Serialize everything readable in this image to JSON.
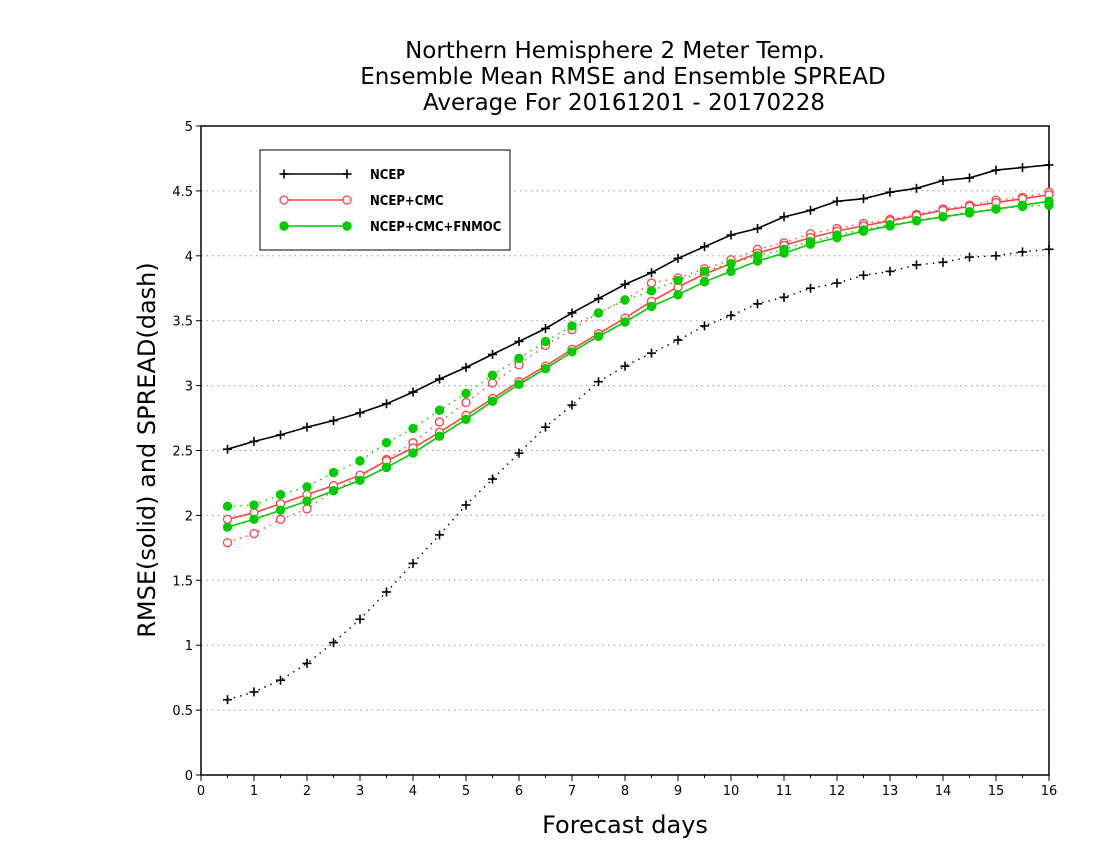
{
  "chart_data": {
    "type": "line",
    "title": [
      "Northern Hemisphere 2 Meter Temp.",
      "Ensemble Mean RMSE and Ensemble SPREAD",
      "Average For 20161201 - 20170228"
    ],
    "xlabel": "Forecast days",
    "ylabel": "RMSE(solid) and SPREAD(dash)",
    "xlim": [
      0,
      16
    ],
    "ylim": [
      0,
      5
    ],
    "xticks": [
      "0",
      "1",
      "2",
      "3",
      "4",
      "5",
      "6",
      "7",
      "8",
      "9",
      "10",
      "11",
      "12",
      "13",
      "14",
      "15",
      "16"
    ],
    "yticks": [
      "0",
      "0.5",
      "1",
      "1.5",
      "2",
      "2.5",
      "3",
      "3.5",
      "4",
      "4.5",
      "5"
    ],
    "grid": "horizontal dotted",
    "legend_position": "top-left",
    "x": [
      0.5,
      1,
      1.5,
      2,
      2.5,
      3,
      3.5,
      4,
      4.5,
      5,
      5.5,
      6,
      6.5,
      7,
      7.5,
      8,
      8.5,
      9,
      9.5,
      10,
      10.5,
      11,
      11.5,
      12,
      12.5,
      13,
      13.5,
      14,
      14.5,
      15,
      15.5,
      16
    ],
    "series": [
      {
        "name": "NCEP",
        "color": "#000000",
        "marker": "plus",
        "rmse": [
          2.51,
          2.57,
          2.62,
          2.68,
          2.73,
          2.79,
          2.86,
          2.95,
          3.05,
          3.14,
          3.24,
          3.34,
          3.44,
          3.56,
          3.67,
          3.78,
          3.87,
          3.98,
          4.07,
          4.16,
          4.21,
          4.3,
          4.35,
          4.42,
          4.44,
          4.49,
          4.52,
          4.58,
          4.6,
          4.66,
          4.68,
          4.7
        ],
        "spread": [
          0.58,
          0.64,
          0.73,
          0.86,
          1.02,
          1.2,
          1.41,
          1.63,
          1.85,
          2.08,
          2.28,
          2.48,
          2.68,
          2.85,
          3.03,
          3.15,
          3.25,
          3.35,
          3.46,
          3.54,
          3.63,
          3.68,
          3.75,
          3.79,
          3.85,
          3.88,
          3.93,
          3.95,
          3.99,
          4.0,
          4.03,
          4.05
        ]
      },
      {
        "name": "NCEP+CMC",
        "color": "#ff4444",
        "marker": "open-circle",
        "rmse": [
          1.97,
          2.02,
          2.09,
          2.16,
          2.23,
          2.31,
          2.42,
          2.52,
          2.64,
          2.77,
          2.9,
          3.03,
          3.15,
          3.28,
          3.4,
          3.52,
          3.65,
          3.76,
          3.86,
          3.94,
          4.02,
          4.08,
          4.14,
          4.19,
          4.23,
          4.27,
          4.31,
          4.35,
          4.38,
          4.41,
          4.44,
          4.47
        ],
        "spread": [
          1.79,
          1.86,
          1.97,
          2.05,
          2.19,
          2.3,
          2.43,
          2.56,
          2.72,
          2.87,
          3.02,
          3.16,
          3.31,
          3.43,
          3.56,
          3.66,
          3.79,
          3.83,
          3.9,
          3.97,
          4.05,
          4.1,
          4.17,
          4.21,
          4.25,
          4.28,
          4.32,
          4.36,
          4.39,
          4.43,
          4.45,
          4.49
        ]
      },
      {
        "name": "NCEP+CMC+FNMOC",
        "color": "#00cc00",
        "marker": "filled-circle",
        "rmse": [
          1.91,
          1.97,
          2.04,
          2.11,
          2.19,
          2.27,
          2.37,
          2.48,
          2.61,
          2.74,
          2.88,
          3.01,
          3.13,
          3.26,
          3.38,
          3.49,
          3.61,
          3.7,
          3.8,
          3.88,
          3.96,
          4.02,
          4.09,
          4.14,
          4.19,
          4.23,
          4.27,
          4.3,
          4.33,
          4.36,
          4.39,
          4.42
        ],
        "spread": [
          2.07,
          2.08,
          2.16,
          2.22,
          2.33,
          2.42,
          2.56,
          2.67,
          2.81,
          2.94,
          3.08,
          3.21,
          3.34,
          3.46,
          3.56,
          3.66,
          3.73,
          3.81,
          3.88,
          3.94,
          4.0,
          4.05,
          4.11,
          4.16,
          4.2,
          4.24,
          4.27,
          4.3,
          4.34,
          4.36,
          4.38,
          4.39
        ]
      }
    ]
  }
}
